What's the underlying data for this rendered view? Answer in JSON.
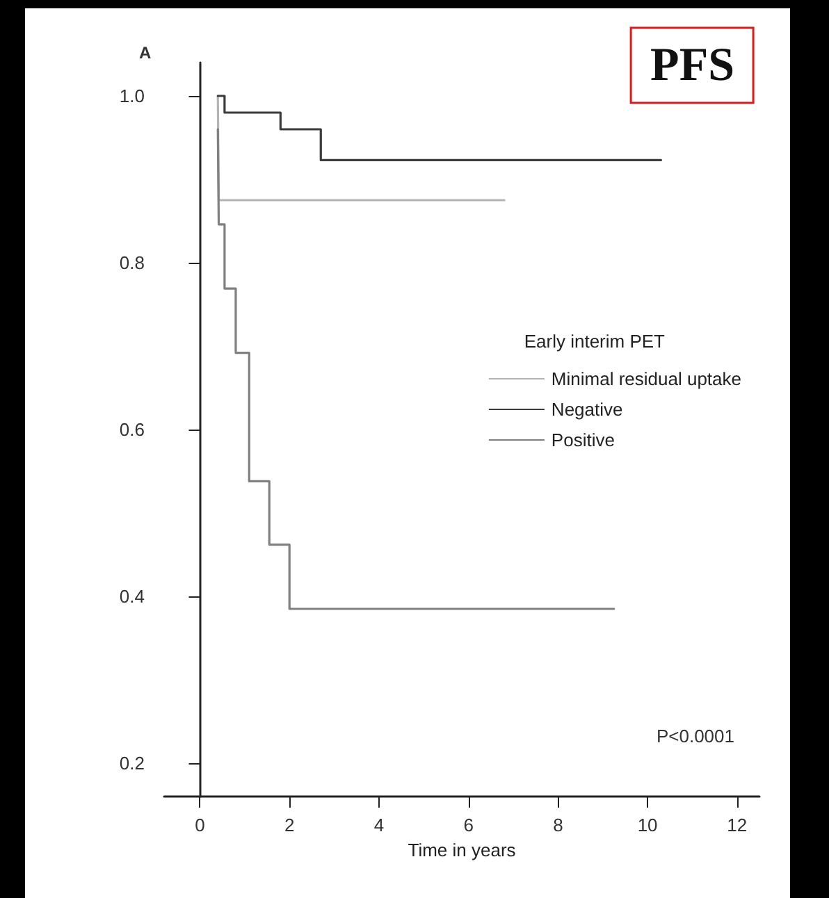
{
  "chart_data": {
    "type": "step",
    "title": "PFS",
    "xlabel": "Time in years",
    "legend_title": "Early interim PET",
    "annotations": [
      "A",
      "P<0.0001"
    ],
    "series": [
      {
        "name": "Minimal residual uptake",
        "color": "#b4b4b4",
        "x": [
          0.4,
          0.42,
          6.8
        ],
        "values": [
          1.0,
          0.875,
          0.875
        ]
      },
      {
        "name": "Negative",
        "color": "#3c3c3c",
        "x": [
          0.4,
          0.55,
          1.8,
          2.7,
          10.3
        ],
        "values": [
          1.0,
          0.98,
          0.96,
          0.923,
          0.923
        ]
      },
      {
        "name": "Positive",
        "color": "#808080",
        "x": [
          0.4,
          0.42,
          0.55,
          0.8,
          1.1,
          1.55,
          2.0,
          9.25
        ],
        "values": [
          0.96,
          0.846,
          0.769,
          0.692,
          0.538,
          0.462,
          0.385,
          0.385
        ]
      }
    ],
    "xlim": [
      -0.8,
      12.5
    ],
    "xticks": [
      0,
      2,
      4,
      6,
      8,
      10,
      12
    ],
    "ylim": [
      0.16,
      1.04
    ],
    "yticks": [
      {
        "value": 0.2,
        "label": "0.2"
      },
      {
        "value": 0.4,
        "label": "0.4"
      },
      {
        "value": 0.6,
        "label": "0.6"
      },
      {
        "value": 0.8,
        "label": "0.8"
      },
      {
        "value": 1.0,
        "label": "1.0"
      }
    ],
    "legend": "center right",
    "marker": "none",
    "line_style": "solid"
  }
}
